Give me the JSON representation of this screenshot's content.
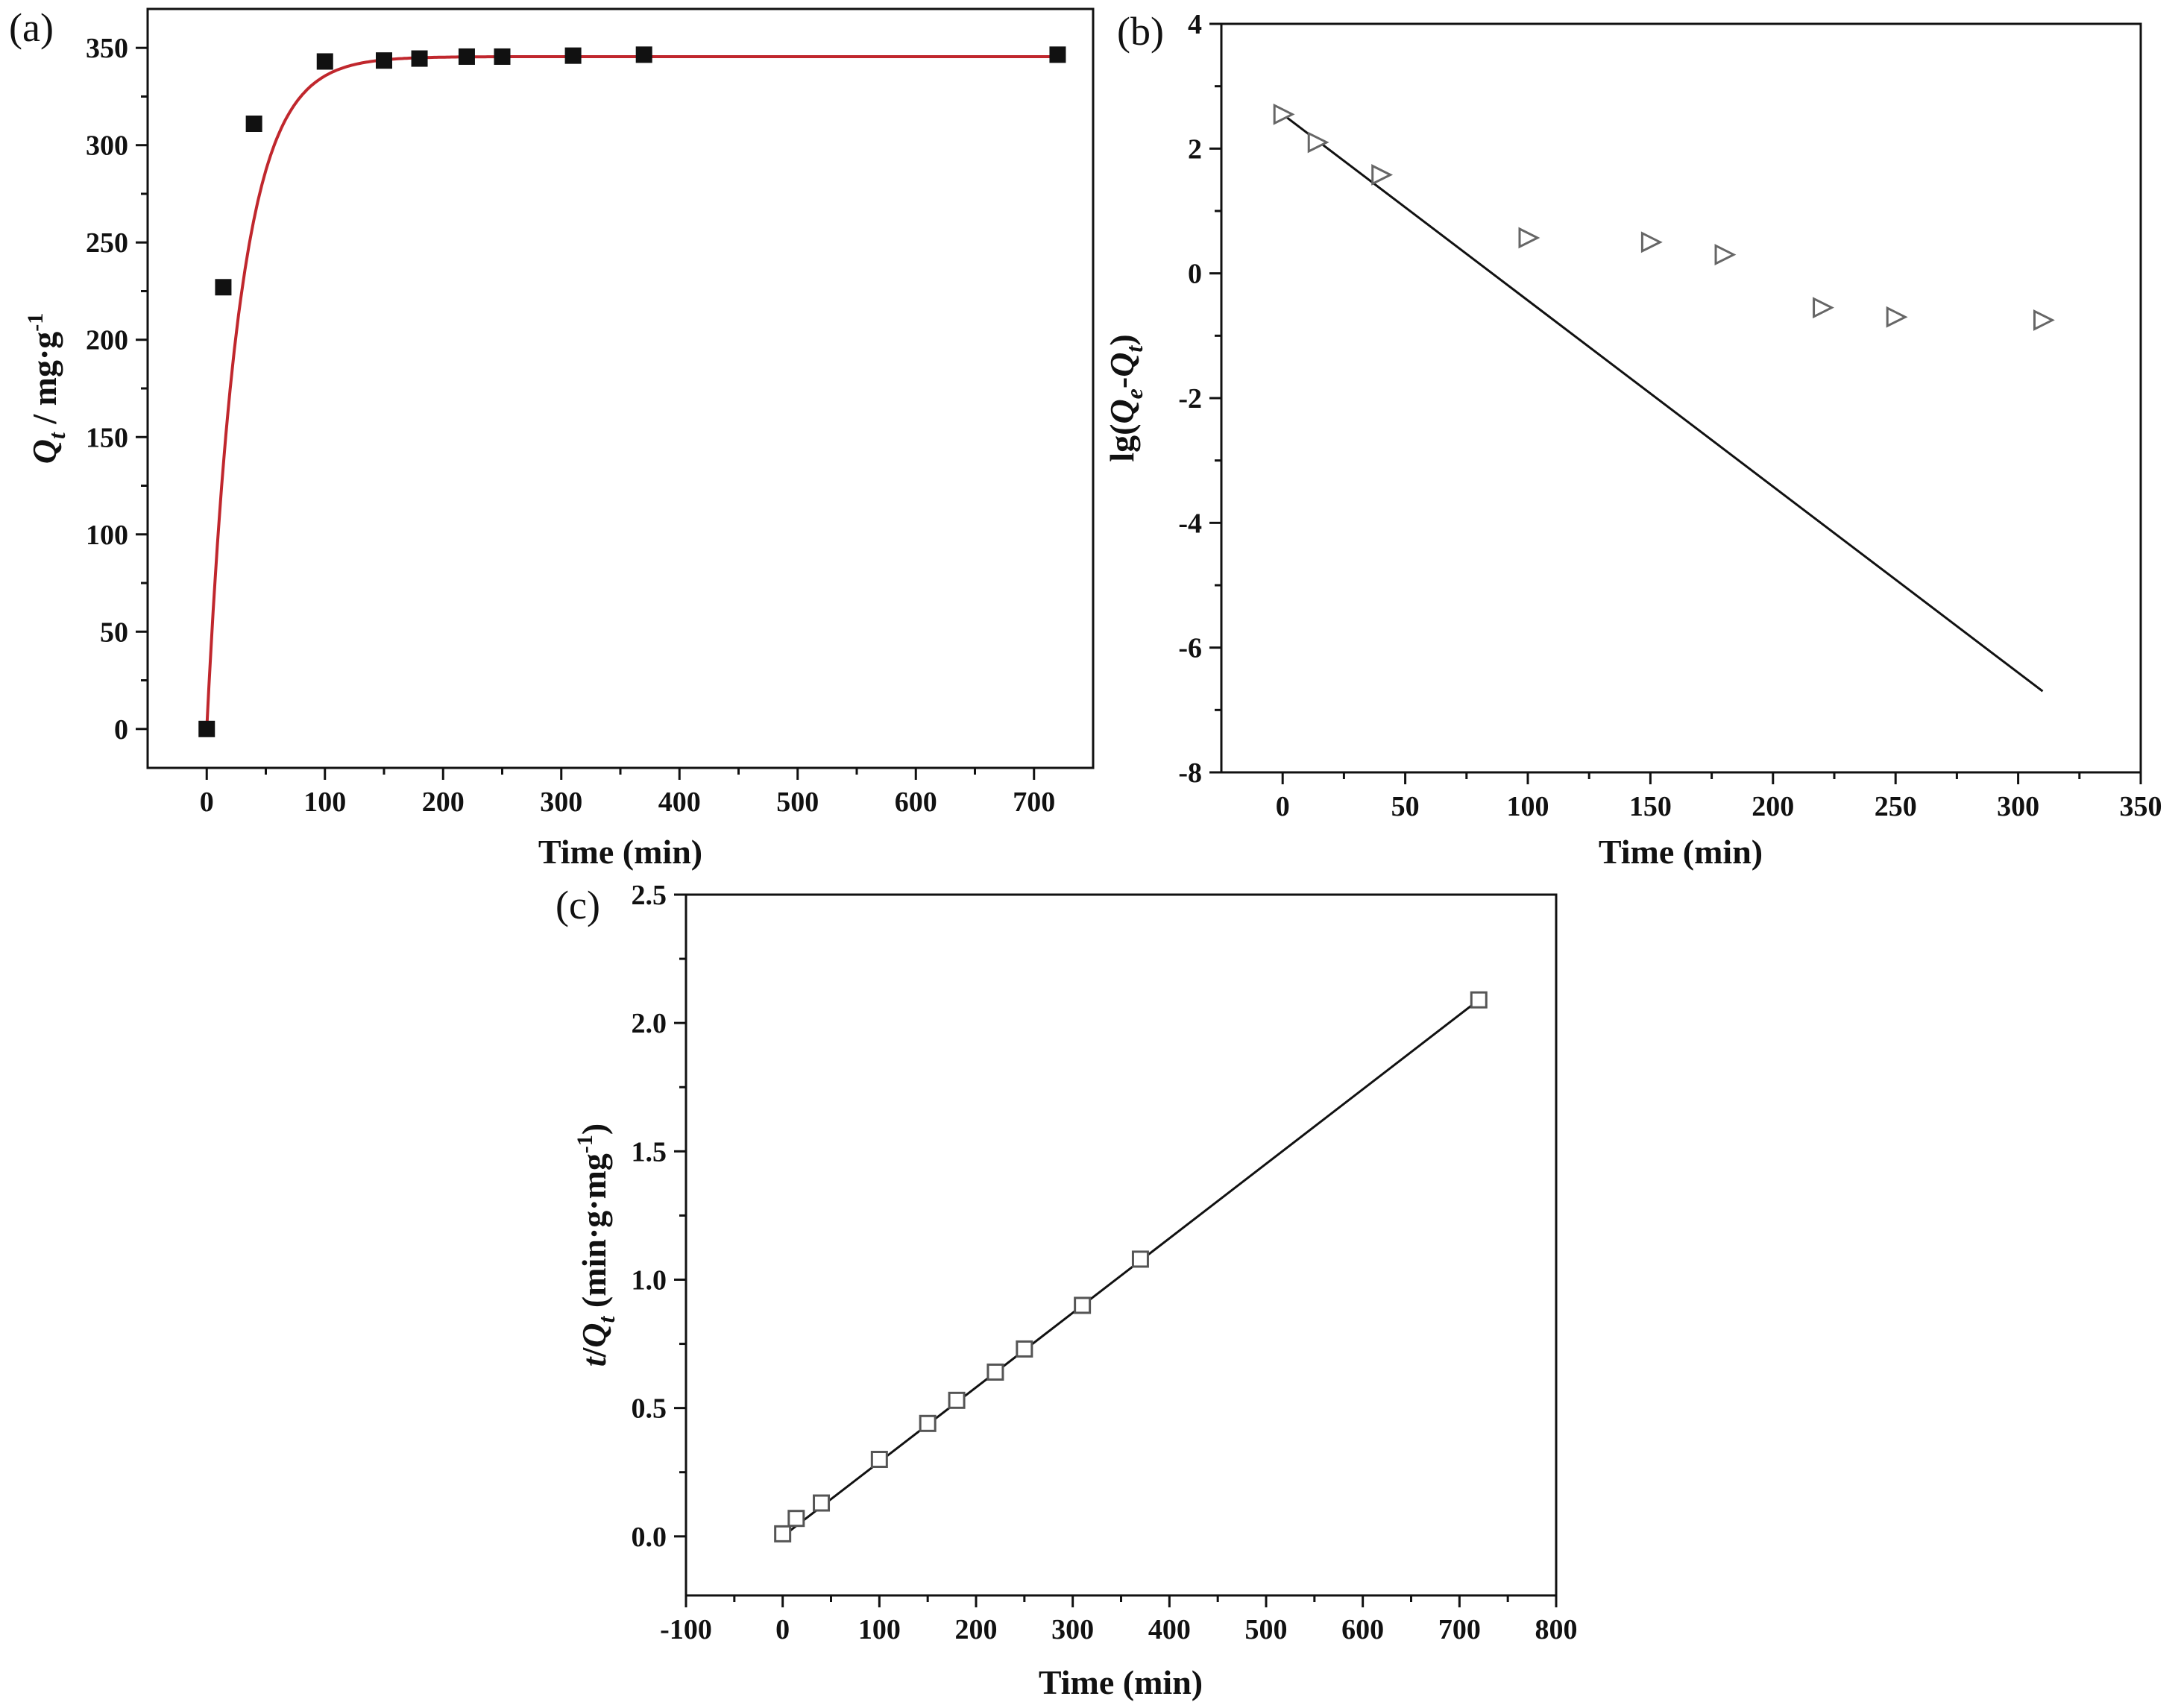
{
  "chart_data": [
    {
      "panel": "(a)",
      "type": "scatter",
      "xlabel": "Time (min)",
      "ylabel_parts": [
        "Q",
        "t",
        " / mg·g",
        "-1"
      ],
      "xlim": [
        -50,
        750
      ],
      "ylim": [
        -20,
        370
      ],
      "xticks": [
        0,
        100,
        200,
        300,
        400,
        500,
        600,
        700
      ],
      "yticks": [
        0,
        50,
        100,
        150,
        200,
        250,
        300,
        350
      ],
      "grid": false,
      "marker": "filled-square",
      "marker_color": "#111111",
      "fit_color": "#c0272d",
      "points": {
        "x": [
          0,
          14,
          40,
          100,
          150,
          180,
          220,
          250,
          310,
          370,
          720
        ],
        "y": [
          0,
          227,
          311,
          343,
          343.5,
          344.5,
          345.5,
          345.5,
          346,
          346.5,
          346.5
        ]
      },
      "fit": {
        "kind": "exponential",
        "qe": 345.5,
        "k": 0.0355,
        "x_range": [
          0,
          720
        ]
      }
    },
    {
      "panel": "(b)",
      "type": "scatter",
      "xlabel": "Time (min)",
      "ylabel_parts": [
        "lg(",
        "Q",
        "e",
        "-",
        "Q",
        "t",
        ")"
      ],
      "xlim": [
        -25,
        350
      ],
      "ylim": [
        -8,
        4
      ],
      "xticks": [
        0,
        50,
        100,
        150,
        200,
        250,
        300,
        350
      ],
      "yticks": [
        -8,
        -6,
        -4,
        -2,
        0,
        2,
        4
      ],
      "grid": false,
      "marker": "open-triangle-right",
      "marker_color": "#666666",
      "line_color": "#111111",
      "points": {
        "x": [
          0,
          14,
          40,
          100,
          150,
          180,
          220,
          250,
          310
        ],
        "y": [
          2.55,
          2.1,
          1.58,
          0.57,
          0.5,
          0.3,
          -0.55,
          -0.7,
          -0.75
        ]
      },
      "fit": {
        "kind": "linear",
        "x": [
          0,
          310
        ],
        "y": [
          2.55,
          -6.7
        ]
      }
    },
    {
      "panel": "(c)",
      "type": "scatter",
      "xlabel": "Time (min)",
      "ylabel_parts": [
        "t",
        "/",
        "Q",
        "t",
        " (min·g·mg",
        "-1",
        ")"
      ],
      "xlim": [
        -100,
        800
      ],
      "ylim": [
        -0.23,
        2.5
      ],
      "xticks": [
        -100,
        0,
        100,
        200,
        300,
        400,
        500,
        600,
        700,
        800
      ],
      "yticks": [
        0.0,
        0.5,
        1.0,
        1.5,
        2.0,
        2.5
      ],
      "tick_format": {
        "y_decimals": 1
      },
      "grid": false,
      "marker": "open-square",
      "marker_color": "#555555",
      "line_color": "#111111",
      "points": {
        "x": [
          0,
          14,
          40,
          100,
          150,
          180,
          220,
          250,
          310,
          370,
          720
        ],
        "y": [
          0.01,
          0.07,
          0.13,
          0.3,
          0.44,
          0.53,
          0.64,
          0.73,
          0.9,
          1.08,
          2.09
        ]
      },
      "fit": {
        "kind": "linear",
        "x": [
          0,
          720
        ],
        "y": [
          0.0,
          2.09
        ]
      }
    }
  ]
}
